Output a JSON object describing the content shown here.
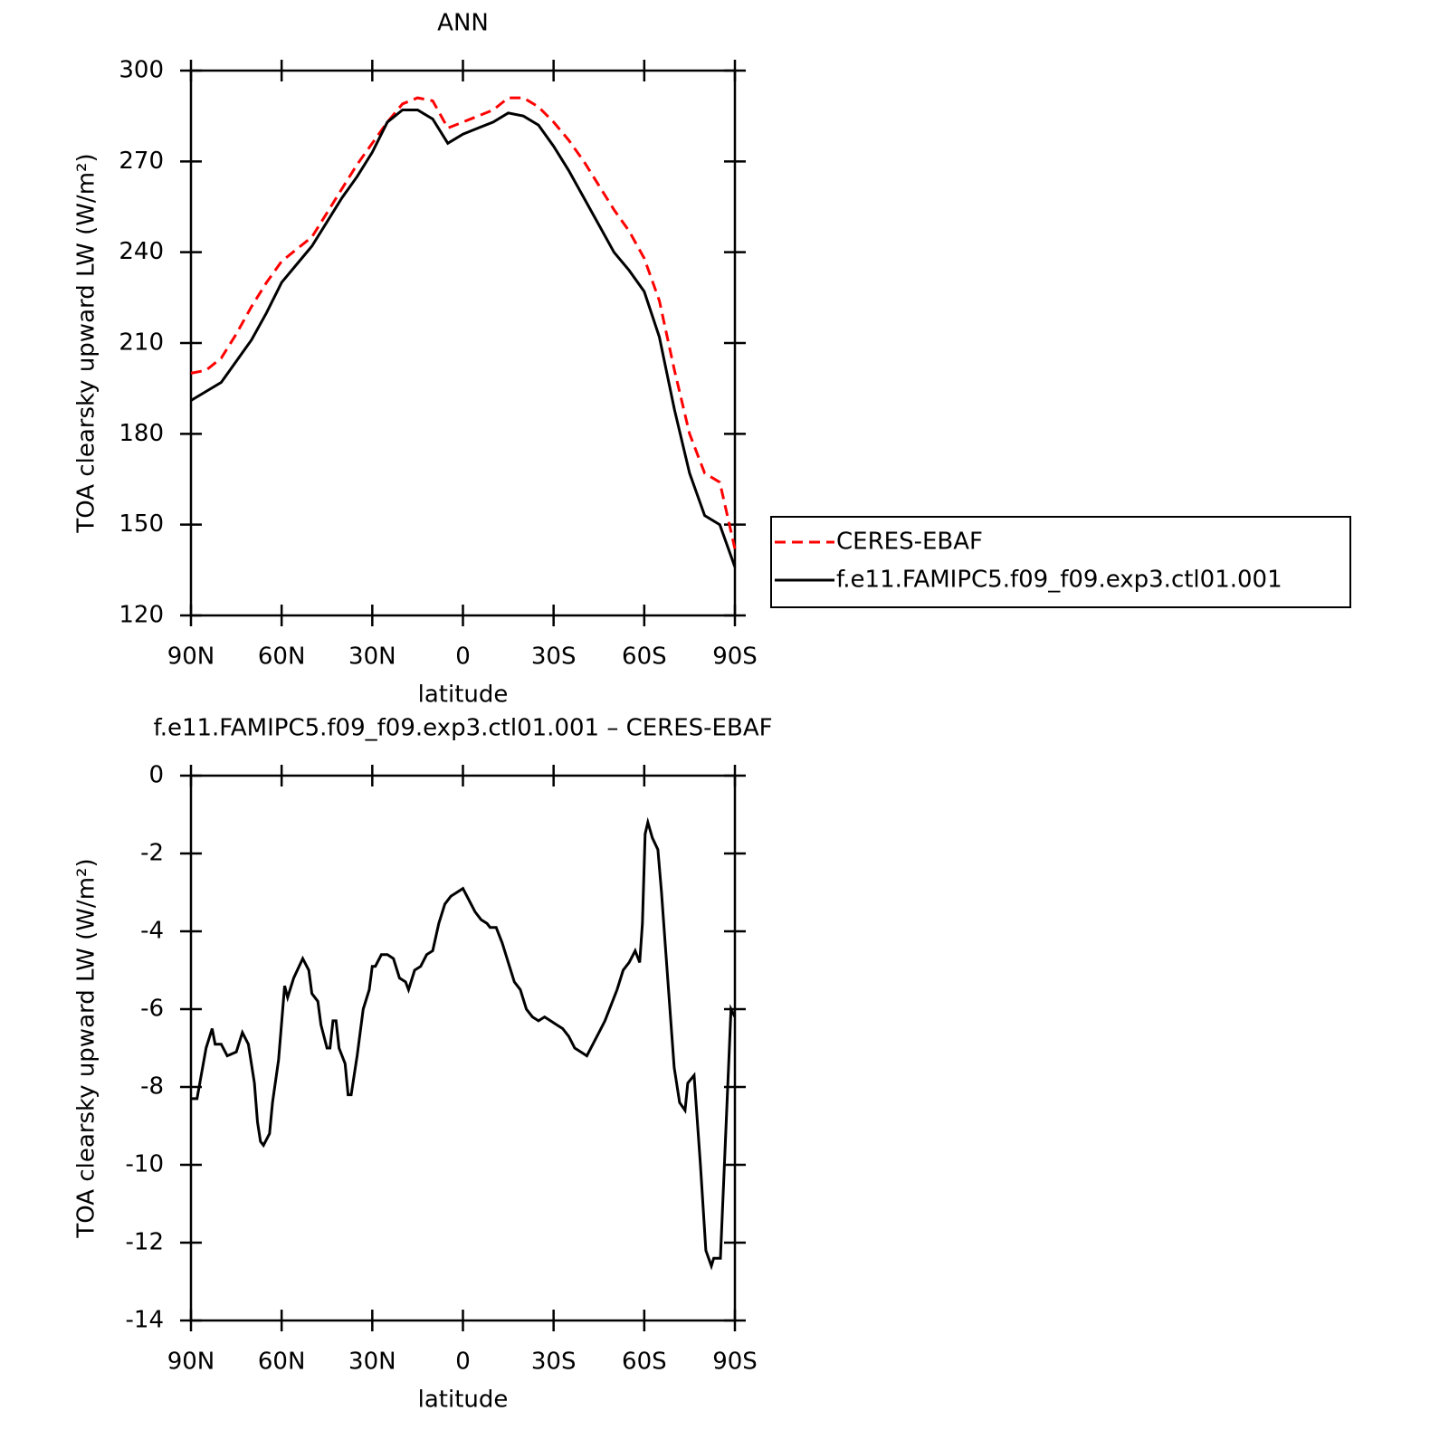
{
  "chart_data": [
    {
      "type": "line",
      "title": "ANN",
      "xlabel": "latitude",
      "ylabel": "TOA clearsky upward LW (W/m²)",
      "x": [
        90,
        85,
        80,
        75,
        70,
        65,
        60,
        55,
        50,
        45,
        40,
        35,
        30,
        25,
        20,
        15,
        10,
        5,
        0,
        -5,
        -10,
        -15,
        -20,
        -25,
        -30,
        -35,
        -40,
        -45,
        -50,
        -55,
        -60,
        -65,
        -70,
        -75,
        -80,
        -85,
        -90
      ],
      "xlim": [
        90,
        -90
      ],
      "xticks": [
        {
          "value": 90,
          "label": "90N"
        },
        {
          "value": 60,
          "label": "60N"
        },
        {
          "value": 30,
          "label": "30N"
        },
        0,
        {
          "value": -30,
          "label": "30S"
        },
        {
          "value": -60,
          "label": "60S"
        },
        {
          "value": -90,
          "label": "90S"
        }
      ],
      "ylim": [
        120,
        300
      ],
      "yticks": [
        120,
        150,
        180,
        210,
        240,
        270,
        300
      ],
      "legend": "outside-right",
      "series": [
        {
          "name": "CERES-EBAF",
          "color": "#ff0000",
          "dash": true,
          "values": [
            200,
            201,
            205,
            213,
            222,
            230,
            237,
            241,
            245,
            253,
            261,
            269,
            276,
            283,
            289,
            291,
            290,
            281,
            283,
            285,
            287,
            291,
            291,
            288,
            283,
            277,
            270,
            262,
            254,
            247,
            238,
            224,
            201,
            180,
            167,
            164,
            142
          ]
        },
        {
          "name": "f.e11.FAMIPC5.f09_f09.exp3.ctl01.001",
          "color": "#000000",
          "dash": false,
          "values": [
            191,
            194,
            197,
            204,
            211,
            220,
            230,
            236,
            242,
            250,
            258,
            265,
            273,
            283,
            287,
            287,
            284,
            276,
            279,
            281,
            283,
            286,
            285,
            282,
            275,
            267,
            258,
            249,
            240,
            234,
            227,
            212,
            188,
            167,
            153,
            150,
            136
          ]
        }
      ]
    },
    {
      "type": "line",
      "title": "f.e11.FAMIPC5.f09_f09.exp3.ctl01.001 – CERES-EBAF",
      "xlabel": "latitude",
      "ylabel": "TOA clearsky upward LW (W/m²)",
      "x": [
        90,
        88,
        85,
        83,
        82,
        80,
        78,
        75,
        73,
        71,
        69,
        68,
        67,
        66,
        64,
        63,
        61,
        59,
        58,
        56,
        53,
        51,
        50,
        48,
        47,
        45,
        44,
        43,
        42,
        41,
        39,
        38,
        37,
        35,
        33,
        31,
        30,
        29,
        27,
        25,
        23,
        21,
        19,
        18,
        16,
        14,
        12,
        10,
        8,
        6,
        4,
        2,
        0,
        -2,
        -4,
        -6,
        -8,
        -9,
        -11,
        -13,
        -15,
        -17,
        -19,
        -21,
        -23,
        -25,
        -27,
        -29,
        -31,
        -33,
        -35,
        -37,
        -39,
        -41,
        -43,
        -45,
        -47,
        -49,
        -51,
        -53,
        -55,
        -57,
        -58.5,
        -59.4,
        -60.3,
        -61.2,
        -62.7,
        -64.5,
        -65.7,
        -66.9,
        -69.9,
        -71.7,
        -73.5,
        -74.4,
        -76.5,
        -78.6,
        -80.4,
        -82.2,
        -83,
        -85.2,
        -88.7,
        -90
      ],
      "xlim": [
        90,
        -90
      ],
      "xticks": [
        {
          "value": 90,
          "label": "90N"
        },
        {
          "value": 60,
          "label": "60N"
        },
        {
          "value": 30,
          "label": "30N"
        },
        0,
        {
          "value": -30,
          "label": "30S"
        },
        {
          "value": -60,
          "label": "60S"
        },
        {
          "value": -90,
          "label": "90S"
        }
      ],
      "ylim": [
        -14,
        0
      ],
      "yticks": [
        -14,
        -12,
        -10,
        -8,
        -6,
        -4,
        -2,
        0
      ],
      "series": [
        {
          "color": "#000000",
          "dash": false,
          "values": [
            -8.3,
            -8.3,
            -7.0,
            -6.5,
            -6.9,
            -6.9,
            -7.2,
            -7.1,
            -6.6,
            -6.9,
            -7.9,
            -8.9,
            -9.4,
            -9.5,
            -9.2,
            -8.4,
            -7.3,
            -5.4,
            -5.7,
            -5.2,
            -4.7,
            -5.0,
            -5.6,
            -5.8,
            -6.4,
            -7.0,
            -7.0,
            -6.3,
            -6.3,
            -7.0,
            -7.4,
            -8.2,
            -8.2,
            -7.2,
            -6.0,
            -5.5,
            -4.9,
            -4.9,
            -4.6,
            -4.6,
            -4.7,
            -5.2,
            -5.3,
            -5.5,
            -5.0,
            -4.9,
            -4.6,
            -4.5,
            -3.8,
            -3.3,
            -3.1,
            -3.0,
            -2.9,
            -3.2,
            -3.5,
            -3.7,
            -3.8,
            -3.9,
            -3.9,
            -4.3,
            -4.8,
            -5.3,
            -5.5,
            -6.0,
            -6.2,
            -6.3,
            -6.2,
            -6.3,
            -6.4,
            -6.5,
            -6.7,
            -7.0,
            -7.1,
            -7.2,
            -6.9,
            -6.6,
            -6.3,
            -5.9,
            -5.5,
            -5.0,
            -4.8,
            -4.5,
            -4.8,
            -3.8,
            -1.5,
            -1.2,
            -1.6,
            -1.9,
            -3.0,
            -4.3,
            -7.5,
            -8.4,
            -8.6,
            -7.9,
            -7.7,
            -10.0,
            -12.2,
            -12.6,
            -12.4,
            -12.4,
            -6.0,
            -6.2
          ]
        }
      ]
    }
  ]
}
